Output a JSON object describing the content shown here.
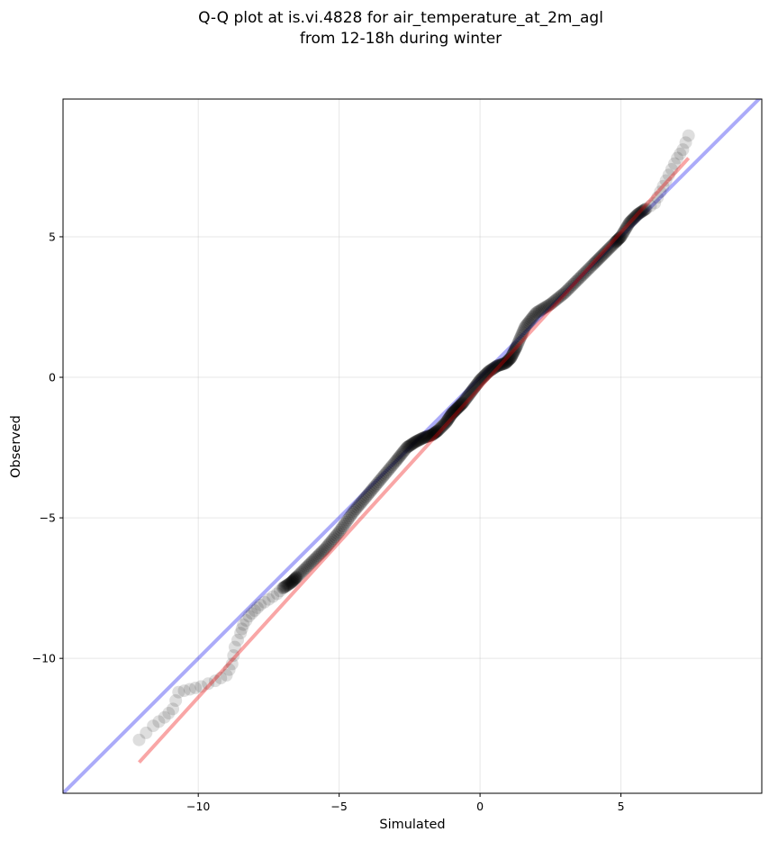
{
  "chart_data": {
    "type": "scatter",
    "title": [
      "Q-Q plot at is.vi.4828 for air_temperature_at_2m_agl",
      "from 12-18h during winter"
    ],
    "xlabel": "Simulated",
    "ylabel": "Observed",
    "xlim": [
      -14.8,
      10.0
    ],
    "ylim": [
      -14.8,
      9.9
    ],
    "x_ticks": [
      -10,
      -5,
      0,
      5
    ],
    "y_ticks": [
      -10,
      -5,
      0,
      5
    ],
    "x_tick_labels": [
      "−10",
      "−5",
      "0",
      "5"
    ],
    "y_tick_labels": [
      "−10",
      "−5",
      "0",
      "5"
    ],
    "grid": true,
    "colors": {
      "points": "#000000",
      "identity_line": "#0000ee",
      "fit_line": "#ee0000"
    },
    "quantile_curve": {
      "x": [
        -12.1,
        -11.6,
        -11.2,
        -10.9,
        -10.7,
        -10.3,
        -9.9,
        -9.4,
        -9.0,
        -8.8,
        -8.7,
        -8.5,
        -8.4,
        -8.2,
        -8.0,
        -7.8,
        -7.5,
        -7.2,
        -7.0,
        -6.7,
        -6.5,
        -6.0,
        -5.5,
        -5.0,
        -4.5,
        -4.0,
        -3.5,
        -3.0,
        -2.6,
        -2.3,
        -2.0,
        -1.7,
        -1.5,
        -1.2,
        -1.0,
        -0.8,
        -0.6,
        -0.3,
        0.0,
        0.3,
        0.6,
        0.9,
        1.1,
        1.3,
        1.6,
        2.0,
        2.5,
        3.0,
        3.5,
        4.0,
        4.4,
        4.8,
        5.0,
        5.3,
        5.6,
        5.9,
        6.2,
        6.4,
        6.6,
        6.8,
        7.0,
        7.2,
        7.4
      ],
      "y": [
        -12.9,
        -12.4,
        -12.1,
        -11.8,
        -11.2,
        -11.1,
        -11.0,
        -10.8,
        -10.6,
        -10.2,
        -9.6,
        -9.1,
        -8.8,
        -8.5,
        -8.3,
        -8.1,
        -7.9,
        -7.7,
        -7.5,
        -7.3,
        -7.1,
        -6.6,
        -6.1,
        -5.5,
        -4.8,
        -4.2,
        -3.6,
        -3.0,
        -2.5,
        -2.3,
        -2.15,
        -2.05,
        -1.9,
        -1.6,
        -1.3,
        -1.1,
        -0.9,
        -0.5,
        -0.1,
        0.2,
        0.4,
        0.5,
        0.7,
        1.1,
        1.8,
        2.3,
        2.6,
        3.0,
        3.5,
        4.0,
        4.4,
        4.8,
        5.0,
        5.5,
        5.8,
        6.0,
        6.2,
        6.6,
        7.0,
        7.4,
        7.8,
        8.1,
        8.6
      ]
    },
    "fit_line": {
      "x": [
        -12.1,
        7.4
      ],
      "y": [
        -13.7,
        7.8
      ]
    },
    "identity_line": {
      "x": [
        -14.8,
        10.0
      ],
      "y": [
        -14.8,
        10.0
      ]
    }
  }
}
